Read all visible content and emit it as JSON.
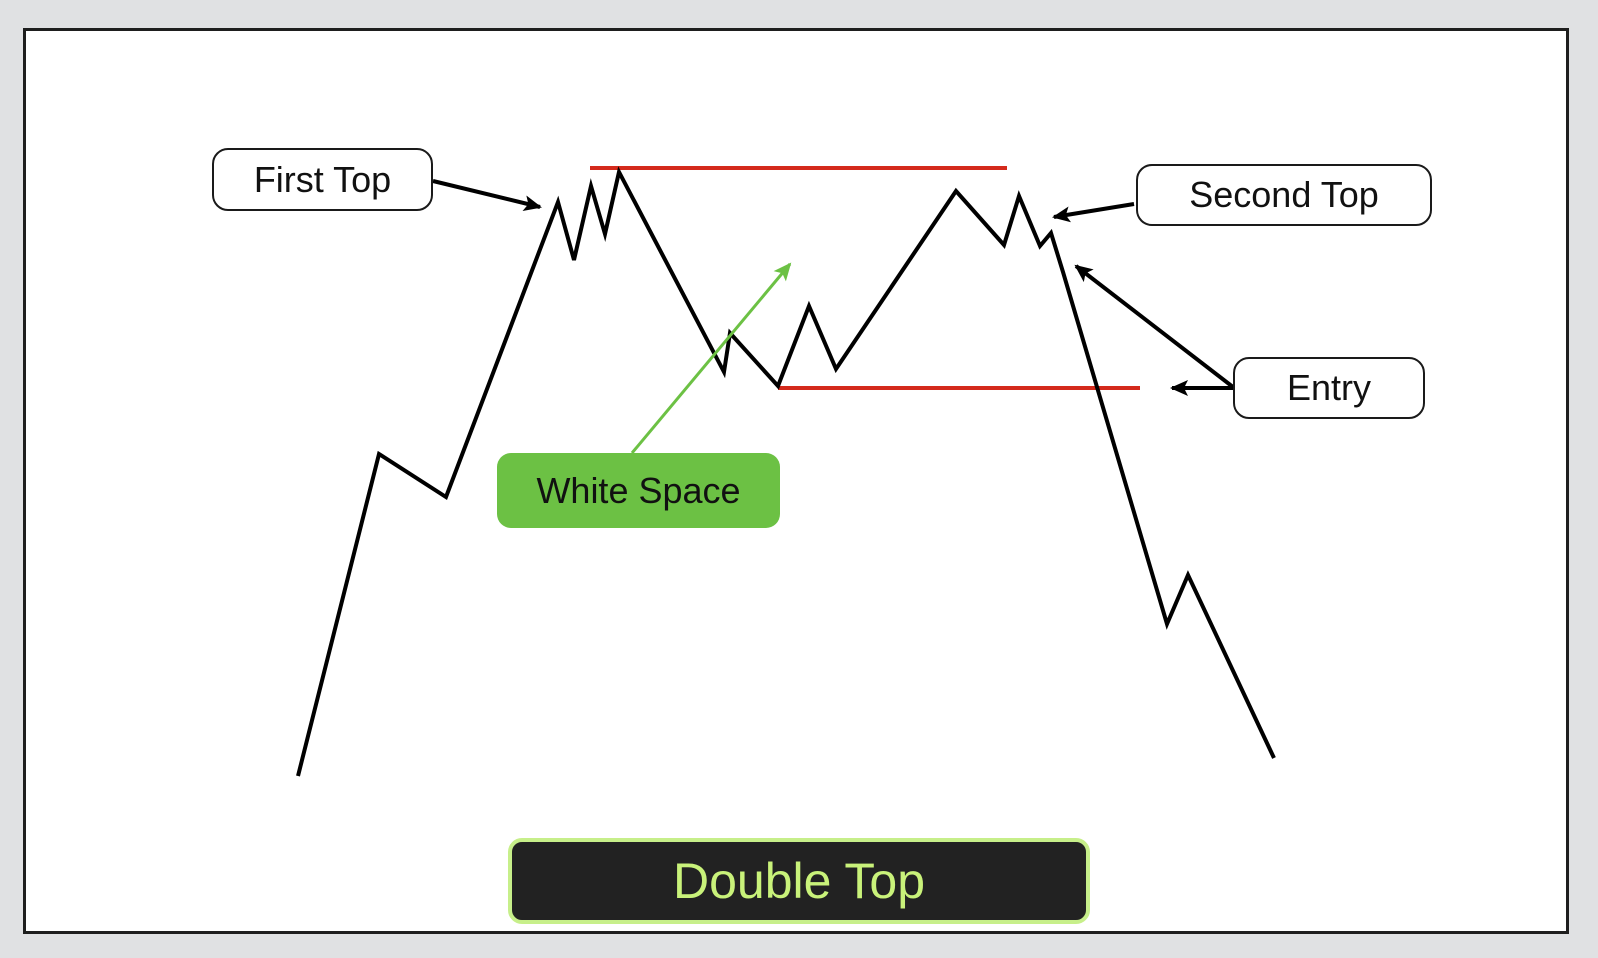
{
  "labels": {
    "first_top": "First Top",
    "second_top": "Second Top",
    "entry": "Entry",
    "white_space": "White Space",
    "title": "Double Top"
  },
  "colors": {
    "resistance_line": "#d42a1c",
    "support_line": "#d42a1c",
    "price_line": "#000000",
    "white_space_arrow": "#6cc144",
    "title_text": "#c9f27a",
    "title_background": "#222222"
  }
}
